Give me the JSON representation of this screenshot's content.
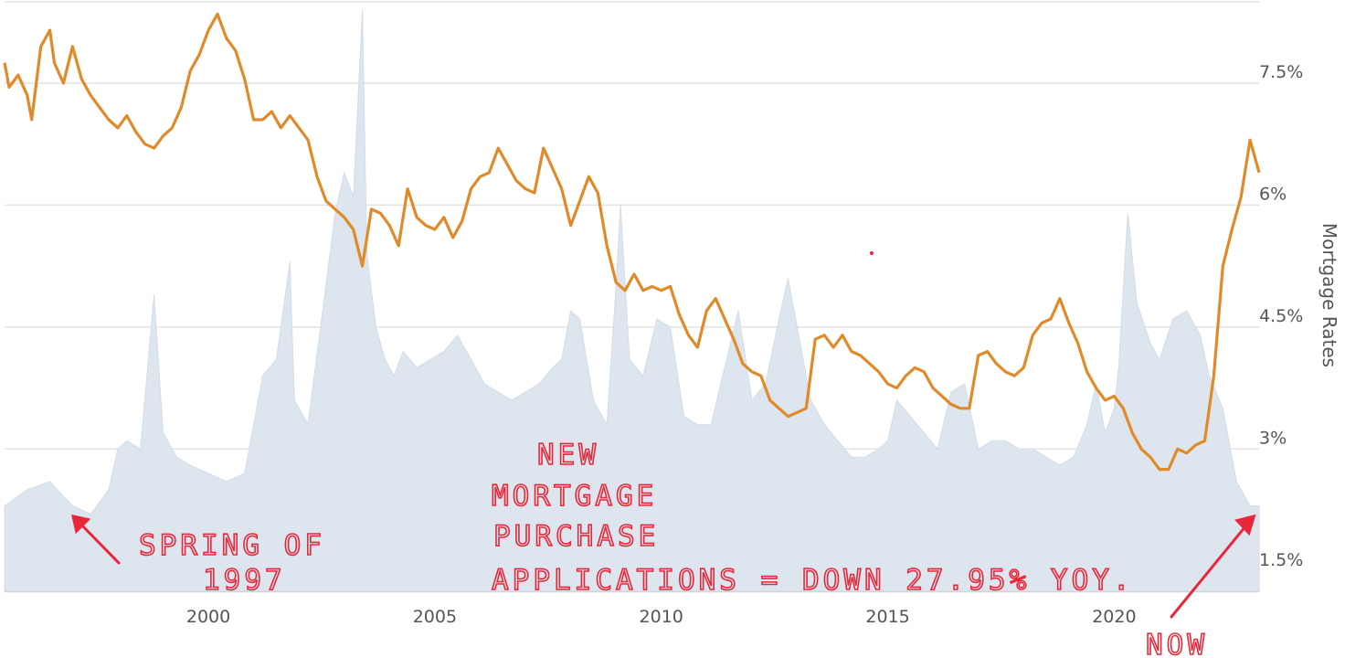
{
  "chart_data": {
    "type": "line",
    "xlim": [
      1995.5,
      2023.2
    ],
    "ylim": [
      1.25,
      8.5
    ],
    "x_ticks": [
      "2000",
      "2005",
      "2010",
      "2015",
      "2020"
    ],
    "y_ticks": [
      "7.5%",
      "6%",
      "4.5%",
      "3%",
      "1.5%"
    ],
    "ylabel": "Mortgage Rates",
    "grid": true,
    "series": [
      {
        "role": "mortgage-rate",
        "color": "#e08a2a",
        "x": [
          1995.5,
          1995.6,
          1995.8,
          1996.0,
          1996.1,
          1996.3,
          1996.5,
          1996.6,
          1996.8,
          1997.0,
          1997.2,
          1997.4,
          1997.6,
          1997.8,
          1998.0,
          1998.2,
          1998.4,
          1998.6,
          1998.8,
          1999.0,
          1999.2,
          1999.4,
          1999.6,
          1999.8,
          2000.0,
          2000.2,
          2000.4,
          2000.6,
          2000.8,
          2001.0,
          2001.2,
          2001.4,
          2001.6,
          2001.8,
          2002.0,
          2002.2,
          2002.4,
          2002.6,
          2002.8,
          2003.0,
          2003.2,
          2003.4,
          2003.6,
          2003.8,
          2004.0,
          2004.2,
          2004.4,
          2004.6,
          2004.8,
          2005.0,
          2005.2,
          2005.4,
          2005.6,
          2005.8,
          2006.0,
          2006.2,
          2006.4,
          2006.6,
          2006.8,
          2007.0,
          2007.2,
          2007.4,
          2007.6,
          2007.8,
          2008.0,
          2008.2,
          2008.4,
          2008.6,
          2008.8,
          2009.0,
          2009.2,
          2009.4,
          2009.6,
          2009.8,
          2010.0,
          2010.2,
          2010.4,
          2010.6,
          2010.8,
          2011.0,
          2011.2,
          2011.4,
          2011.6,
          2011.8,
          2012.0,
          2012.2,
          2012.4,
          2012.6,
          2012.8,
          2013.0,
          2013.2,
          2013.4,
          2013.6,
          2013.8,
          2014.0,
          2014.2,
          2014.4,
          2014.6,
          2014.8,
          2015.0,
          2015.2,
          2015.4,
          2015.6,
          2015.8,
          2016.0,
          2016.2,
          2016.4,
          2016.6,
          2016.8,
          2017.0,
          2017.2,
          2017.4,
          2017.6,
          2017.8,
          2018.0,
          2018.2,
          2018.4,
          2018.6,
          2018.8,
          2019.0,
          2019.2,
          2019.4,
          2019.6,
          2019.8,
          2020.0,
          2020.2,
          2020.4,
          2020.6,
          2020.8,
          2021.0,
          2021.2,
          2021.4,
          2021.6,
          2021.8,
          2022.0,
          2022.2,
          2022.4,
          2022.6,
          2022.8,
          2023.0,
          2023.2
        ],
        "y": [
          7.75,
          7.45,
          7.6,
          7.35,
          7.05,
          7.95,
          8.15,
          7.75,
          7.5,
          7.95,
          7.55,
          7.35,
          7.2,
          7.05,
          6.95,
          7.1,
          6.9,
          6.75,
          6.7,
          6.85,
          6.95,
          7.2,
          7.65,
          7.85,
          8.15,
          8.35,
          8.05,
          7.9,
          7.55,
          7.05,
          7.05,
          7.15,
          6.95,
          7.1,
          6.95,
          6.8,
          6.35,
          6.05,
          5.95,
          5.85,
          5.7,
          5.25,
          5.95,
          5.9,
          5.75,
          5.5,
          6.2,
          5.85,
          5.75,
          5.7,
          5.85,
          5.6,
          5.8,
          6.2,
          6.35,
          6.4,
          6.7,
          6.5,
          6.3,
          6.2,
          6.15,
          6.7,
          6.45,
          6.2,
          5.75,
          6.05,
          6.35,
          6.15,
          5.5,
          5.05,
          4.95,
          5.15,
          4.95,
          5.0,
          4.95,
          5.0,
          4.65,
          4.4,
          4.25,
          4.7,
          4.85,
          4.6,
          4.35,
          4.05,
          3.95,
          3.9,
          3.6,
          3.5,
          3.4,
          3.45,
          3.5,
          4.35,
          4.4,
          4.25,
          4.4,
          4.2,
          4.15,
          4.05,
          3.95,
          3.8,
          3.75,
          3.9,
          4.0,
          3.95,
          3.75,
          3.65,
          3.55,
          3.5,
          3.5,
          4.15,
          4.2,
          4.05,
          3.95,
          3.9,
          4.0,
          4.4,
          4.55,
          4.6,
          4.85,
          4.55,
          4.3,
          3.95,
          3.75,
          3.6,
          3.65,
          3.5,
          3.2,
          3.0,
          2.9,
          2.75,
          2.75,
          3.0,
          2.95,
          3.05,
          3.1,
          3.9,
          5.25,
          5.7,
          6.1,
          6.8,
          6.4
        ]
      },
      {
        "role": "purchase-applications",
        "color": "#dde5ee",
        "x": [
          1995.5,
          1996.0,
          1996.5,
          1997.0,
          1997.4,
          1997.8,
          1998.0,
          1998.2,
          1998.5,
          1998.8,
          1999.0,
          1999.3,
          1999.6,
          2000.0,
          2000.4,
          2000.8,
          2001.0,
          2001.2,
          2001.5,
          2001.8,
          2001.9,
          2002.2,
          2002.5,
          2002.8,
          2003.0,
          2003.2,
          2003.4,
          2003.5,
          2003.7,
          2003.9,
          2004.1,
          2004.3,
          2004.6,
          2004.9,
          2005.2,
          2005.5,
          2005.8,
          2006.1,
          2006.4,
          2006.7,
          2007.0,
          2007.3,
          2007.6,
          2007.8,
          2008.0,
          2008.2,
          2008.5,
          2008.8,
          2009.0,
          2009.1,
          2009.3,
          2009.6,
          2009.9,
          2010.2,
          2010.5,
          2010.8,
          2011.1,
          2011.4,
          2011.7,
          2012.0,
          2012.3,
          2012.6,
          2012.8,
          2013.0,
          2013.3,
          2013.6,
          2013.9,
          2014.2,
          2014.5,
          2014.8,
          2015.0,
          2015.2,
          2015.5,
          2015.8,
          2016.1,
          2016.4,
          2016.7,
          2017.0,
          2017.3,
          2017.6,
          2017.9,
          2018.2,
          2018.5,
          2018.8,
          2019.1,
          2019.4,
          2019.6,
          2019.8,
          2020.0,
          2020.1,
          2020.3,
          2020.5,
          2020.8,
          2021.0,
          2021.3,
          2021.6,
          2021.9,
          2022.1,
          2022.4,
          2022.7,
          2023.0,
          2023.2
        ],
        "y": [
          2.3,
          2.5,
          2.6,
          2.3,
          2.2,
          2.5,
          3.0,
          3.1,
          3.0,
          4.9,
          3.2,
          2.9,
          2.8,
          2.7,
          2.6,
          2.7,
          3.3,
          3.9,
          4.1,
          5.3,
          3.6,
          3.3,
          4.6,
          5.9,
          6.4,
          6.1,
          8.4,
          5.4,
          4.5,
          4.1,
          3.9,
          4.2,
          4.0,
          4.1,
          4.2,
          4.4,
          4.1,
          3.8,
          3.7,
          3.6,
          3.7,
          3.8,
          4.0,
          4.1,
          4.7,
          4.6,
          3.6,
          3.3,
          5.0,
          6.0,
          4.1,
          3.9,
          4.6,
          4.5,
          3.4,
          3.3,
          3.3,
          4.0,
          4.7,
          3.6,
          3.8,
          4.6,
          5.1,
          4.5,
          3.6,
          3.3,
          3.1,
          2.9,
          2.9,
          3.0,
          3.1,
          3.6,
          3.4,
          3.2,
          3.0,
          3.7,
          3.8,
          3.0,
          3.1,
          3.1,
          3.0,
          3.0,
          2.9,
          2.8,
          2.9,
          3.3,
          3.8,
          3.2,
          3.5,
          4.0,
          5.9,
          4.8,
          4.3,
          4.1,
          4.6,
          4.7,
          4.4,
          3.9,
          3.5,
          2.6,
          2.3,
          2.3
        ]
      }
    ],
    "annotations": [
      {
        "id": "spring",
        "lines": [
          "SPRING OF",
          "1997"
        ],
        "x": 1997.0,
        "y": 2.18
      },
      {
        "id": "new",
        "lines": [
          "NEW",
          "MORTGAGE",
          "PURCHASE",
          "APPLICATIONS = DOWN 27.95% YOY."
        ]
      },
      {
        "id": "now",
        "lines": [
          "NOW"
        ],
        "x": 2023.1,
        "y": 2.18
      }
    ],
    "colors": {
      "grid": "#e3e3e3",
      "axis": "#cfd5dc",
      "annotation": "#e8283a"
    }
  }
}
